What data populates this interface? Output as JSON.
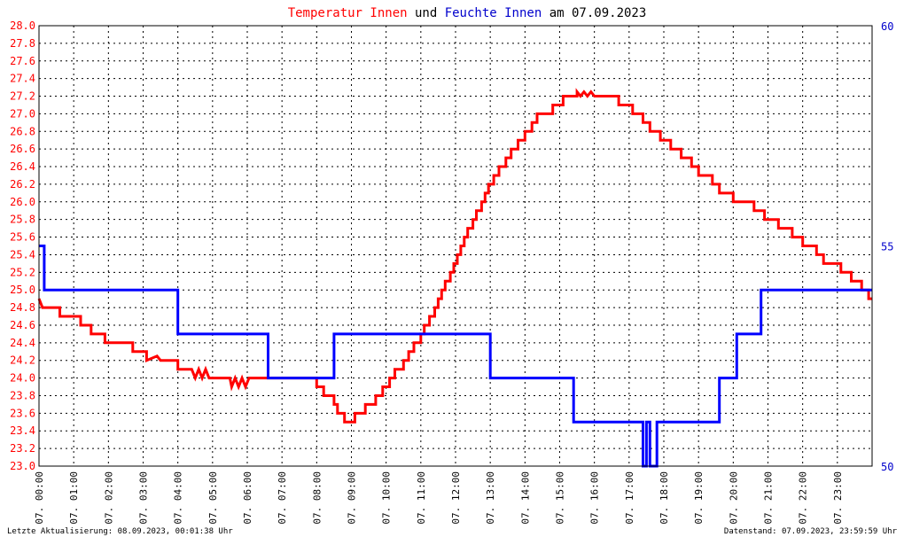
{
  "title_parts": [
    {
      "text": "Temperatur Innen",
      "color": "#ff0000"
    },
    {
      "text": " und ",
      "color": "#000000"
    },
    {
      "text": "Feuchte Innen",
      "color": "#0000cc"
    },
    {
      "text": " am 07.09.2023",
      "color": "#000000"
    }
  ],
  "footer": {
    "left": "Letzte Aktualisierung: 08.09.2023, 00:01:38 Uhr",
    "right": "Datenstand: 07.09.2023, 23:59:59 Uhr"
  },
  "colors": {
    "temperature": "#ff0000",
    "humidity": "#0000ff",
    "right_axis": "#0000cc"
  },
  "chart_data": {
    "type": "line",
    "grid": true,
    "x_unit": "hours",
    "xlim": [
      0,
      24
    ],
    "x_tick_labels": [
      "07. 00:00",
      "07. 01:00",
      "07. 02:00",
      "07. 03:00",
      "07. 04:00",
      "07. 05:00",
      "07. 06:00",
      "07. 07:00",
      "07. 08:00",
      "07. 09:00",
      "07. 10:00",
      "07. 11:00",
      "07. 12:00",
      "07. 13:00",
      "07. 14:00",
      "07. 15:00",
      "07. 16:00",
      "07. 17:00",
      "07. 18:00",
      "07. 19:00",
      "07. 20:00",
      "07. 21:00",
      "07. 22:00",
      "07. 23:00"
    ],
    "y_left": {
      "lim": [
        23.0,
        28.0
      ],
      "ticks": [
        "23.0",
        "23.2",
        "23.4",
        "23.6",
        "23.8",
        "24.0",
        "24.2",
        "24.4",
        "24.6",
        "24.8",
        "25.0",
        "25.2",
        "25.4",
        "25.6",
        "25.8",
        "26.0",
        "26.2",
        "26.4",
        "26.6",
        "26.8",
        "27.0",
        "27.2",
        "27.4",
        "27.6",
        "27.8",
        "28.0"
      ]
    },
    "y_right": {
      "lim": [
        50,
        60
      ],
      "ticks": [
        "50",
        "55",
        "60"
      ]
    },
    "series": [
      {
        "name": "Temperatur Innen",
        "axis": "left",
        "points": [
          [
            0.0,
            24.9
          ],
          [
            0.1,
            24.8
          ],
          [
            0.6,
            24.8
          ],
          [
            0.6,
            24.7
          ],
          [
            1.2,
            24.7
          ],
          [
            1.2,
            24.6
          ],
          [
            1.5,
            24.6
          ],
          [
            1.5,
            24.5
          ],
          [
            1.9,
            24.5
          ],
          [
            1.9,
            24.4
          ],
          [
            2.7,
            24.4
          ],
          [
            2.7,
            24.3
          ],
          [
            3.1,
            24.3
          ],
          [
            3.1,
            24.2
          ],
          [
            3.4,
            24.25
          ],
          [
            3.5,
            24.2
          ],
          [
            4.0,
            24.2
          ],
          [
            4.0,
            24.1
          ],
          [
            4.4,
            24.1
          ],
          [
            4.5,
            24.0
          ],
          [
            4.6,
            24.1
          ],
          [
            4.7,
            24.0
          ],
          [
            4.8,
            24.1
          ],
          [
            4.9,
            24.0
          ],
          [
            5.5,
            24.0
          ],
          [
            5.55,
            23.9
          ],
          [
            5.65,
            24.0
          ],
          [
            5.75,
            23.9
          ],
          [
            5.85,
            24.0
          ],
          [
            5.95,
            23.9
          ],
          [
            6.05,
            24.0
          ],
          [
            8.0,
            24.0
          ],
          [
            8.0,
            23.9
          ],
          [
            8.2,
            23.9
          ],
          [
            8.2,
            23.8
          ],
          [
            8.5,
            23.8
          ],
          [
            8.5,
            23.7
          ],
          [
            8.6,
            23.7
          ],
          [
            8.6,
            23.6
          ],
          [
            8.8,
            23.6
          ],
          [
            8.8,
            23.5
          ],
          [
            9.1,
            23.5
          ],
          [
            9.1,
            23.6
          ],
          [
            9.4,
            23.6
          ],
          [
            9.4,
            23.7
          ],
          [
            9.7,
            23.7
          ],
          [
            9.7,
            23.8
          ],
          [
            9.9,
            23.8
          ],
          [
            9.9,
            23.9
          ],
          [
            10.1,
            23.9
          ],
          [
            10.1,
            24.0
          ],
          [
            10.25,
            24.0
          ],
          [
            10.25,
            24.1
          ],
          [
            10.5,
            24.1
          ],
          [
            10.5,
            24.2
          ],
          [
            10.65,
            24.2
          ],
          [
            10.65,
            24.3
          ],
          [
            10.8,
            24.3
          ],
          [
            10.8,
            24.4
          ],
          [
            11.0,
            24.4
          ],
          [
            11.0,
            24.5
          ],
          [
            11.1,
            24.5
          ],
          [
            11.1,
            24.6
          ],
          [
            11.25,
            24.6
          ],
          [
            11.25,
            24.7
          ],
          [
            11.4,
            24.7
          ],
          [
            11.4,
            24.8
          ],
          [
            11.5,
            24.8
          ],
          [
            11.5,
            24.9
          ],
          [
            11.6,
            24.9
          ],
          [
            11.6,
            25.0
          ],
          [
            11.7,
            25.0
          ],
          [
            11.7,
            25.1
          ],
          [
            11.85,
            25.1
          ],
          [
            11.85,
            25.2
          ],
          [
            11.95,
            25.2
          ],
          [
            11.95,
            25.3
          ],
          [
            12.05,
            25.3
          ],
          [
            12.05,
            25.4
          ],
          [
            12.15,
            25.4
          ],
          [
            12.15,
            25.5
          ],
          [
            12.25,
            25.5
          ],
          [
            12.25,
            25.6
          ],
          [
            12.35,
            25.6
          ],
          [
            12.35,
            25.7
          ],
          [
            12.5,
            25.7
          ],
          [
            12.5,
            25.8
          ],
          [
            12.6,
            25.8
          ],
          [
            12.6,
            25.9
          ],
          [
            12.75,
            25.9
          ],
          [
            12.75,
            26.0
          ],
          [
            12.85,
            26.0
          ],
          [
            12.85,
            26.1
          ],
          [
            12.95,
            26.1
          ],
          [
            12.95,
            26.2
          ],
          [
            13.1,
            26.2
          ],
          [
            13.1,
            26.3
          ],
          [
            13.25,
            26.3
          ],
          [
            13.25,
            26.4
          ],
          [
            13.45,
            26.4
          ],
          [
            13.45,
            26.5
          ],
          [
            13.6,
            26.5
          ],
          [
            13.6,
            26.6
          ],
          [
            13.8,
            26.6
          ],
          [
            13.8,
            26.7
          ],
          [
            14.0,
            26.7
          ],
          [
            14.0,
            26.8
          ],
          [
            14.2,
            26.8
          ],
          [
            14.2,
            26.9
          ],
          [
            14.35,
            26.9
          ],
          [
            14.35,
            27.0
          ],
          [
            14.8,
            27.0
          ],
          [
            14.8,
            27.1
          ],
          [
            15.1,
            27.1
          ],
          [
            15.1,
            27.2
          ],
          [
            15.5,
            27.2
          ],
          [
            15.5,
            27.25
          ],
          [
            15.6,
            27.2
          ],
          [
            15.7,
            27.25
          ],
          [
            15.8,
            27.2
          ],
          [
            15.9,
            27.25
          ],
          [
            16.0,
            27.2
          ],
          [
            16.7,
            27.2
          ],
          [
            16.7,
            27.1
          ],
          [
            17.1,
            27.1
          ],
          [
            17.1,
            27.0
          ],
          [
            17.4,
            27.0
          ],
          [
            17.4,
            26.9
          ],
          [
            17.6,
            26.9
          ],
          [
            17.6,
            26.8
          ],
          [
            17.9,
            26.8
          ],
          [
            17.9,
            26.7
          ],
          [
            18.2,
            26.7
          ],
          [
            18.2,
            26.6
          ],
          [
            18.5,
            26.6
          ],
          [
            18.5,
            26.5
          ],
          [
            18.8,
            26.5
          ],
          [
            18.8,
            26.4
          ],
          [
            19.0,
            26.4
          ],
          [
            19.0,
            26.3
          ],
          [
            19.4,
            26.3
          ],
          [
            19.4,
            26.2
          ],
          [
            19.6,
            26.2
          ],
          [
            19.6,
            26.1
          ],
          [
            20.0,
            26.1
          ],
          [
            20.0,
            26.0
          ],
          [
            20.6,
            26.0
          ],
          [
            20.6,
            25.9
          ],
          [
            20.9,
            25.9
          ],
          [
            20.9,
            25.8
          ],
          [
            21.3,
            25.8
          ],
          [
            21.3,
            25.7
          ],
          [
            21.7,
            25.7
          ],
          [
            21.7,
            25.6
          ],
          [
            22.0,
            25.6
          ],
          [
            22.0,
            25.5
          ],
          [
            22.4,
            25.5
          ],
          [
            22.4,
            25.4
          ],
          [
            22.6,
            25.4
          ],
          [
            22.6,
            25.3
          ],
          [
            23.1,
            25.3
          ],
          [
            23.1,
            25.2
          ],
          [
            23.4,
            25.2
          ],
          [
            23.4,
            25.1
          ],
          [
            23.7,
            25.1
          ],
          [
            23.7,
            25.0
          ],
          [
            23.9,
            25.0
          ],
          [
            23.9,
            24.9
          ],
          [
            24.0,
            24.9
          ]
        ]
      },
      {
        "name": "Feuchte Innen",
        "axis": "right",
        "points": [
          [
            0.0,
            55
          ],
          [
            0.15,
            55
          ],
          [
            0.15,
            54
          ],
          [
            4.0,
            54
          ],
          [
            4.0,
            53
          ],
          [
            6.6,
            53
          ],
          [
            6.6,
            52
          ],
          [
            8.5,
            52
          ],
          [
            8.5,
            53
          ],
          [
            13.0,
            53
          ],
          [
            13.0,
            52
          ],
          [
            15.4,
            52
          ],
          [
            15.4,
            51
          ],
          [
            17.4,
            51
          ],
          [
            17.4,
            50
          ],
          [
            17.5,
            50
          ],
          [
            17.5,
            51
          ],
          [
            17.6,
            51
          ],
          [
            17.6,
            50
          ],
          [
            17.8,
            50
          ],
          [
            17.8,
            51
          ],
          [
            19.6,
            51
          ],
          [
            19.6,
            52
          ],
          [
            20.1,
            52
          ],
          [
            20.1,
            53
          ],
          [
            20.8,
            53
          ],
          [
            20.8,
            54
          ],
          [
            24.0,
            54
          ]
        ]
      }
    ]
  }
}
